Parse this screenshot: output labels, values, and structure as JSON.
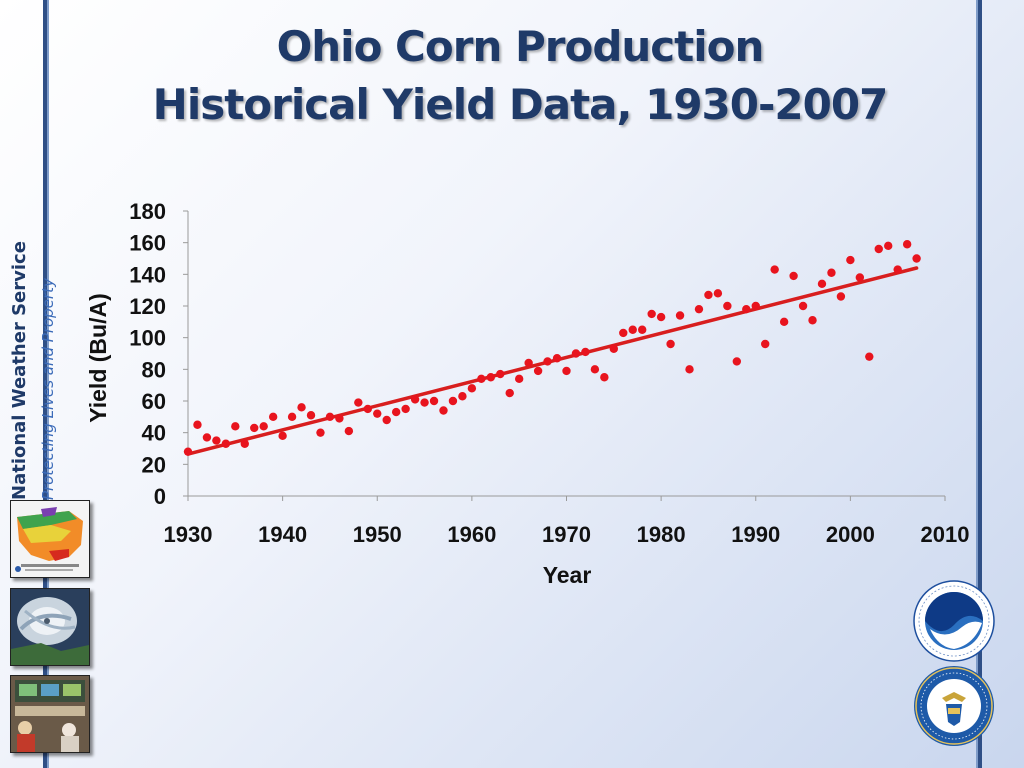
{
  "slide": {
    "title_line1": "Ohio Corn Production",
    "title_line2": "Historical Yield Data, 1930-2007",
    "organization": "National Weather Service",
    "motto": "Protecting Lives and Property"
  },
  "colors": {
    "title": "#1f3a68",
    "points": "#e8141e",
    "trendline": "#d81e1e",
    "rules": "#2f4f86"
  },
  "icons": [
    "temperature-map-thumbnail",
    "hurricane-satellite-thumbnail",
    "operations-room-thumbnail",
    "noaa-logo-icon",
    "commerce-seal-icon"
  ],
  "chart_data": {
    "type": "scatter",
    "title": "",
    "xlabel": "Year",
    "ylabel": "Yield (Bu/A)",
    "xlim": [
      1930,
      2010
    ],
    "ylim": [
      0,
      180
    ],
    "xticks": [
      1930,
      1940,
      1950,
      1960,
      1970,
      1980,
      1990,
      2000,
      2010
    ],
    "yticks": [
      0,
      20,
      40,
      60,
      80,
      100,
      120,
      140,
      160,
      180
    ],
    "grid": false,
    "legend": "none",
    "series": [
      {
        "x": [
          1930,
          1931,
          1932,
          1933,
          1934,
          1935,
          1936,
          1937,
          1938,
          1939,
          1940,
          1941,
          1942,
          1943,
          1944,
          1945,
          1946,
          1947,
          1948,
          1949,
          1950,
          1951,
          1952,
          1953,
          1954,
          1955,
          1956,
          1957,
          1958,
          1959,
          1960,
          1961,
          1962,
          1963,
          1964,
          1965,
          1966,
          1967,
          1968,
          1969,
          1970,
          1971,
          1972,
          1973,
          1974,
          1975,
          1976,
          1977,
          1978,
          1979,
          1980,
          1981,
          1982,
          1983,
          1984,
          1985,
          1986,
          1987,
          1988,
          1989,
          1990,
          1991,
          1992,
          1993,
          1994,
          1995,
          1996,
          1997,
          1998,
          1999,
          2000,
          2001,
          2002,
          2003,
          2004,
          2005,
          2006,
          2007
        ],
        "y": [
          28,
          45,
          37,
          35,
          33,
          44,
          33,
          43,
          44,
          50,
          38,
          50,
          56,
          51,
          40,
          50,
          49,
          41,
          59,
          55,
          52,
          48,
          53,
          55,
          61,
          59,
          60,
          54,
          60,
          63,
          68,
          74,
          75,
          77,
          65,
          74,
          84,
          79,
          85,
          87,
          79,
          90,
          91,
          80,
          75,
          93,
          103,
          105,
          105,
          115,
          113,
          96,
          114,
          80,
          118,
          127,
          128,
          120,
          85,
          118,
          120,
          96,
          143,
          110,
          139,
          120,
          111,
          134,
          141,
          126,
          149,
          138,
          88,
          156,
          158,
          143,
          159,
          150
        ]
      }
    ],
    "trendline": {
      "x": [
        1930,
        2007
      ],
      "y": [
        26.5,
        144
      ]
    }
  }
}
